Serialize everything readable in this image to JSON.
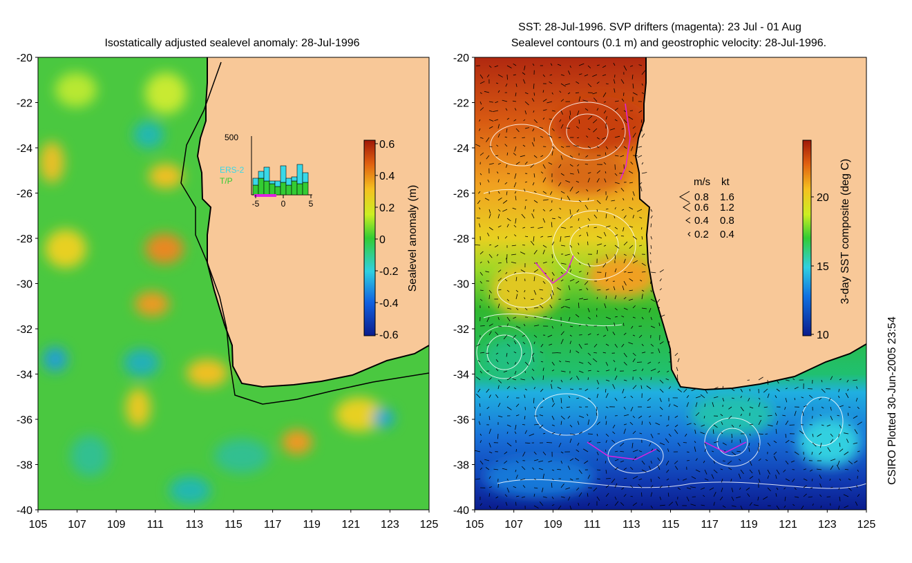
{
  "left_panel": {
    "title": "Isostatically adjusted sealevel anomaly: 28-Jul-1996",
    "y_ticks": [
      "-20",
      "-22",
      "-24",
      "-26",
      "-28",
      "-30",
      "-32",
      "-34",
      "-36",
      "-38",
      "-40"
    ],
    "x_ticks": [
      "105",
      "107",
      "109",
      "111",
      "113",
      "115",
      "117",
      "119",
      "121",
      "123",
      "125"
    ],
    "colorbar": {
      "label": "Sealevel anomaly (m)",
      "ticks": [
        "0.6",
        "0.4",
        "0.2",
        "0",
        "-0.2",
        "-0.4",
        "-0.6"
      ]
    },
    "inset": {
      "y_top_label": "500",
      "x_ticks": [
        "-5",
        "0",
        "5"
      ],
      "legend": [
        {
          "name": "ERS-2",
          "color": "#38d8e8"
        },
        {
          "name": "T/P",
          "color": "#33cc33"
        }
      ]
    }
  },
  "right_panel": {
    "title_line1": "SST: 28-Jul-1996. SVP drifters (magenta): 23 Jul - 01 Aug",
    "title_line2": "Sealevel contours (0.1 m) and geostrophic velocity: 28-Jul-1996.",
    "y_ticks": [
      "-20",
      "-22",
      "-24",
      "-26",
      "-28",
      "-30",
      "-32",
      "-34",
      "-36",
      "-38",
      "-40"
    ],
    "x_ticks": [
      "105",
      "107",
      "109",
      "111",
      "113",
      "115",
      "117",
      "119",
      "121",
      "123",
      "125"
    ],
    "colorbar": {
      "label": "3-day SST composite (deg C)",
      "ticks": [
        "20",
        "15",
        "10"
      ]
    },
    "velocity_key": {
      "header_ms": "m/s",
      "header_kt": "kt",
      "rows": [
        {
          "ms": "0.8",
          "kt": "1.6"
        },
        {
          "ms": "0.6",
          "kt": "1.2"
        },
        {
          "ms": "0.4",
          "kt": "0.8"
        },
        {
          "ms": "0.2",
          "kt": "0.4"
        }
      ]
    }
  },
  "footer_credit": "CSIRO Plotted 30-Jun-2005 23:54",
  "colors": {
    "land": "#f8c898",
    "ocean_green": "#33cc33",
    "anomaly_high": "#b22222",
    "anomaly_low": "#0a1c8c",
    "drifter": "#e020e0"
  }
}
